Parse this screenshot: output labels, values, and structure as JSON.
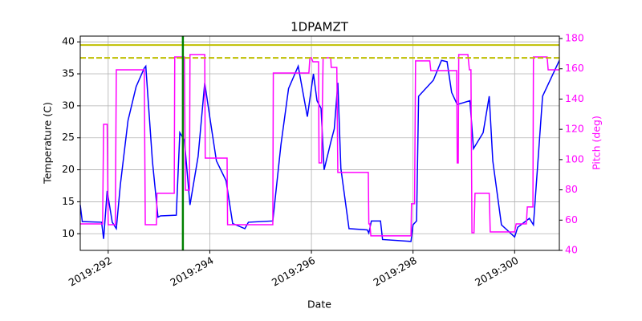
{
  "chart_data": {
    "type": "line",
    "title": "1DPAMZT",
    "x_label": "Date",
    "y_label": "Temperature (C)",
    "y2_label": "Pitch (deg)",
    "y2_color": "#ff00ff",
    "grid": true,
    "xlim": [
      291.45,
      300.88
    ],
    "xticks": [
      {
        "value": 292,
        "label": "2019:292"
      },
      {
        "value": 294,
        "label": "2019:294"
      },
      {
        "value": 296,
        "label": "2019:296"
      },
      {
        "value": 298,
        "label": "2019:298"
      },
      {
        "value": 300,
        "label": "2019:300"
      }
    ],
    "ylim": [
      7.4,
      40.9
    ],
    "yticks": [
      10,
      15,
      20,
      25,
      30,
      35,
      40
    ],
    "y2lim": [
      40,
      181.6
    ],
    "y2ticks": [
      40,
      60,
      80,
      100,
      120,
      140,
      160,
      180
    ],
    "hlines": [
      {
        "value": 39.5,
        "color": "#bfbf00",
        "style": "solid"
      },
      {
        "value": 37.5,
        "color": "#bfbf00",
        "style": "dashed"
      }
    ],
    "vlines": [
      {
        "value": 293.47,
        "color": "#008000",
        "style": "solid"
      }
    ],
    "series": [
      {
        "color": "#0000ff",
        "axis": "y",
        "x": [
          291.45,
          291.49,
          291.87,
          291.91,
          291.98,
          292.08,
          292.16,
          292.24,
          292.39,
          292.55,
          292.71,
          292.74,
          292.87,
          292.98,
          293.03,
          293.34,
          293.41,
          293.5,
          293.61,
          293.77,
          293.9,
          294.01,
          294.13,
          294.32,
          294.45,
          294.69,
          294.76,
          295.24,
          295.4,
          295.55,
          295.74,
          295.92,
          296.04,
          296.11,
          296.19,
          296.25,
          296.39,
          296.45,
          296.52,
          296.58,
          296.74,
          297.1,
          297.13,
          297.18,
          297.36,
          297.4,
          297.96,
          298.0,
          298.07,
          298.11,
          298.4,
          298.56,
          298.67,
          298.76,
          298.87,
          299.12,
          299.19,
          299.38,
          299.5,
          299.57,
          299.74,
          300.0,
          300.06,
          300.29,
          300.37,
          300.55,
          300.88
        ],
        "values": [
          14.5,
          11.9,
          11.8,
          9.2,
          16.7,
          11.8,
          10.8,
          17.7,
          27.7,
          33.0,
          35.9,
          36.2,
          21.4,
          12.6,
          12.8,
          12.9,
          25.8,
          24.6,
          14.5,
          22.1,
          33.6,
          27.7,
          21.4,
          18.3,
          11.6,
          10.8,
          11.8,
          12.0,
          23.9,
          32.7,
          36.2,
          28.3,
          35.0,
          30.8,
          29.6,
          20.0,
          24.6,
          26.4,
          33.6,
          20.2,
          10.8,
          10.6,
          10.1,
          12.0,
          12.0,
          9.1,
          8.8,
          11.4,
          12.0,
          31.5,
          34.0,
          37.1,
          36.9,
          32.1,
          30.2,
          30.8,
          23.3,
          25.8,
          31.5,
          21.4,
          11.4,
          9.5,
          11.0,
          12.4,
          11.4,
          31.5,
          37.1
        ]
      },
      {
        "color": "#ff00ff",
        "axis": "y2",
        "x": [
          291.45,
          291.89,
          291.91,
          291.98,
          292.0,
          292.14,
          292.16,
          292.71,
          292.73,
          292.95,
          292.96,
          293.3,
          293.31,
          293.5,
          293.52,
          293.6,
          293.61,
          293.9,
          293.91,
          294.34,
          294.35,
          295.24,
          295.25,
          295.95,
          295.97,
          296.0,
          296.03,
          296.14,
          296.15,
          296.2,
          296.23,
          296.38,
          296.39,
          296.5,
          296.52,
          297.12,
          297.13,
          297.15,
          297.17,
          297.96,
          297.97,
          298.03,
          298.05,
          298.33,
          298.35,
          298.86,
          298.87,
          298.89,
          298.9,
          299.08,
          299.11,
          299.14,
          299.16,
          299.2,
          299.22,
          299.5,
          299.52,
          300.0,
          300.03,
          300.23,
          300.25,
          300.36,
          300.37,
          300.64,
          300.66,
          300.88
        ],
        "values": [
          57.5,
          57.5,
          123.3,
          123.3,
          57.0,
          57.0,
          159.3,
          159.3,
          57.0,
          57.0,
          77.7,
          77.7,
          167.8,
          167.8,
          79.8,
          79.8,
          169.4,
          169.4,
          101.0,
          101.0,
          57.0,
          57.0,
          157.2,
          157.2,
          167.3,
          167.3,
          164.6,
          164.6,
          97.8,
          97.8,
          167.3,
          167.3,
          160.9,
          160.9,
          91.5,
          91.5,
          57.5,
          57.5,
          49.6,
          49.6,
          70.8,
          70.8,
          165.2,
          165.2,
          158.8,
          158.8,
          97.8,
          97.8,
          169.4,
          169.4,
          159.3,
          159.3,
          51.7,
          51.7,
          77.7,
          77.7,
          52.2,
          52.2,
          57.5,
          57.5,
          68.7,
          68.7,
          167.8,
          167.8,
          159.3,
          159.3
        ]
      }
    ]
  }
}
